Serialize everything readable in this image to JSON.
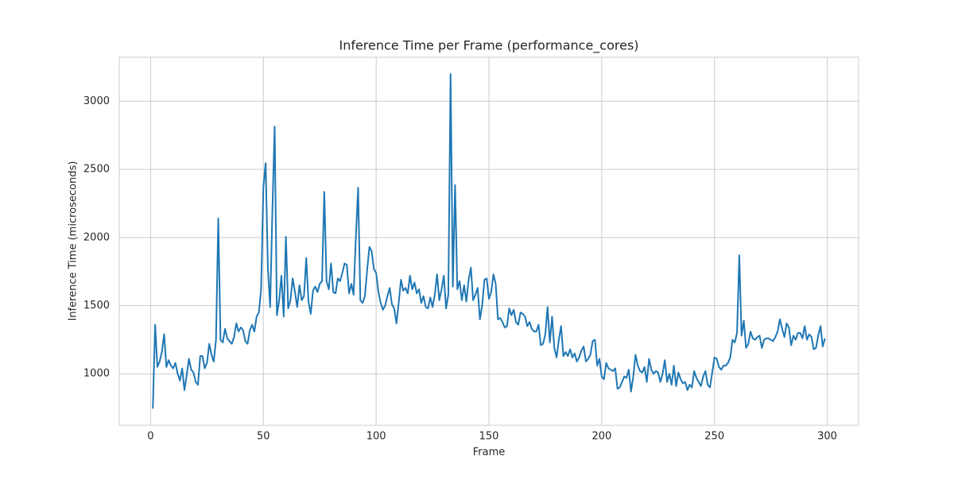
{
  "chart_data": {
    "type": "line",
    "title": "Inference Time per Frame (performance_cores)",
    "xlabel": "Frame",
    "ylabel": "Inference Time (microseconds)",
    "color": "#1f77b4",
    "grid": true,
    "xlim": [
      -13.9,
      313.9
    ],
    "ylim": [
      622,
      3323
    ],
    "xticks": [
      0,
      50,
      100,
      150,
      200,
      250,
      300
    ],
    "yticks": [
      1000,
      1500,
      2000,
      2500,
      3000
    ],
    "x": [
      1,
      2,
      3,
      4,
      5,
      6,
      7,
      8,
      9,
      10,
      11,
      12,
      13,
      14,
      15,
      16,
      17,
      18,
      19,
      20,
      21,
      22,
      23,
      24,
      25,
      26,
      27,
      28,
      29,
      30,
      31,
      32,
      33,
      34,
      35,
      36,
      37,
      38,
      39,
      40,
      41,
      42,
      43,
      44,
      45,
      46,
      47,
      48,
      49,
      50,
      51,
      52,
      53,
      54,
      55,
      56,
      57,
      58,
      59,
      60,
      61,
      62,
      63,
      64,
      65,
      66,
      67,
      68,
      69,
      70,
      71,
      72,
      73,
      74,
      75,
      76,
      77,
      78,
      79,
      80,
      81,
      82,
      83,
      84,
      85,
      86,
      87,
      88,
      89,
      90,
      91,
      92,
      93,
      94,
      95,
      96,
      97,
      98,
      99,
      100,
      101,
      102,
      103,
      104,
      105,
      106,
      107,
      108,
      109,
      110,
      111,
      112,
      113,
      114,
      115,
      116,
      117,
      118,
      119,
      120,
      121,
      122,
      123,
      124,
      125,
      126,
      127,
      128,
      129,
      130,
      131,
      132,
      133,
      134,
      135,
      136,
      137,
      138,
      139,
      140,
      141,
      142,
      143,
      144,
      145,
      146,
      147,
      148,
      149,
      150,
      151,
      152,
      153,
      154,
      155,
      156,
      157,
      158,
      159,
      160,
      161,
      162,
      163,
      164,
      165,
      166,
      167,
      168,
      169,
      170,
      171,
      172,
      173,
      174,
      175,
      176,
      177,
      178,
      179,
      180,
      181,
      182,
      183,
      184,
      185,
      186,
      187,
      188,
      189,
      190,
      191,
      192,
      193,
      194,
      195,
      196,
      197,
      198,
      199,
      200,
      201,
      202,
      203,
      204,
      205,
      206,
      207,
      208,
      209,
      210,
      211,
      212,
      213,
      214,
      215,
      216,
      217,
      218,
      219,
      220,
      221,
      222,
      223,
      224,
      225,
      226,
      227,
      228,
      229,
      230,
      231,
      232,
      233,
      234,
      235,
      236,
      237,
      238,
      239,
      240,
      241,
      242,
      243,
      244,
      245,
      246,
      247,
      248,
      249,
      250,
      251,
      252,
      253,
      254,
      255,
      256,
      257,
      258,
      259,
      260,
      261,
      262,
      263,
      264,
      265,
      266,
      267,
      268,
      269,
      270,
      271,
      272,
      273,
      274,
      275,
      276,
      277,
      278,
      279,
      280,
      281,
      282,
      283,
      284,
      285,
      286,
      287,
      288,
      289,
      290,
      291,
      292,
      293,
      294,
      295,
      296,
      297,
      298,
      299
    ],
    "values": [
      745,
      1360,
      1050,
      1090,
      1160,
      1290,
      1050,
      1100,
      1060,
      1040,
      1080,
      1000,
      950,
      1040,
      880,
      990,
      1110,
      1030,
      1010,
      940,
      920,
      1130,
      1130,
      1040,
      1080,
      1220,
      1140,
      1090,
      1250,
      2140,
      1250,
      1230,
      1330,
      1260,
      1240,
      1220,
      1270,
      1370,
      1310,
      1340,
      1320,
      1240,
      1220,
      1320,
      1360,
      1310,
      1420,
      1450,
      1620,
      2370,
      2545,
      1780,
      1490,
      2200,
      2815,
      1430,
      1540,
      1720,
      1420,
      2005,
      1480,
      1540,
      1700,
      1600,
      1490,
      1650,
      1540,
      1570,
      1850,
      1530,
      1440,
      1610,
      1640,
      1600,
      1660,
      1680,
      2335,
      1680,
      1620,
      1810,
      1600,
      1590,
      1700,
      1680,
      1740,
      1810,
      1800,
      1590,
      1660,
      1580,
      2000,
      2365,
      1540,
      1520,
      1570,
      1760,
      1930,
      1900,
      1770,
      1740,
      1600,
      1520,
      1470,
      1500,
      1570,
      1630,
      1510,
      1480,
      1370,
      1520,
      1690,
      1610,
      1630,
      1590,
      1720,
      1620,
      1670,
      1590,
      1620,
      1520,
      1570,
      1490,
      1480,
      1560,
      1490,
      1580,
      1730,
      1540,
      1620,
      1720,
      1480,
      1580,
      3200,
      1640,
      2385,
      1620,
      1680,
      1540,
      1650,
      1530,
      1690,
      1780,
      1540,
      1580,
      1630,
      1400,
      1500,
      1690,
      1700,
      1550,
      1600,
      1730,
      1660,
      1400,
      1410,
      1380,
      1340,
      1350,
      1480,
      1430,
      1470,
      1380,
      1360,
      1450,
      1440,
      1420,
      1350,
      1380,
      1330,
      1310,
      1310,
      1360,
      1210,
      1220,
      1290,
      1490,
      1230,
      1420,
      1190,
      1120,
      1250,
      1350,
      1130,
      1160,
      1130,
      1180,
      1120,
      1150,
      1090,
      1120,
      1170,
      1200,
      1090,
      1110,
      1140,
      1240,
      1250,
      1060,
      1110,
      980,
      960,
      1080,
      1040,
      1030,
      1020,
      1040,
      890,
      900,
      940,
      980,
      970,
      1030,
      870,
      980,
      1140,
      1060,
      1020,
      1010,
      1050,
      940,
      1110,
      1030,
      1000,
      1020,
      1010,
      940,
      1000,
      1100,
      940,
      1000,
      920,
      1060,
      910,
      1010,
      960,
      930,
      940,
      880,
      920,
      900,
      1020,
      970,
      940,
      910,
      980,
      1020,
      920,
      900,
      1010,
      1120,
      1110,
      1050,
      1030,
      1060,
      1060,
      1080,
      1120,
      1250,
      1230,
      1300,
      1870,
      1280,
      1390,
      1190,
      1220,
      1310,
      1260,
      1250,
      1270,
      1280,
      1190,
      1250,
      1260,
      1260,
      1250,
      1240,
      1270,
      1310,
      1400,
      1330,
      1270,
      1370,
      1340,
      1210,
      1280,
      1250,
      1300,
      1300,
      1260,
      1350,
      1250,
      1290,
      1270,
      1180,
      1190,
      1280,
      1350,
      1200,
      1260
    ]
  }
}
